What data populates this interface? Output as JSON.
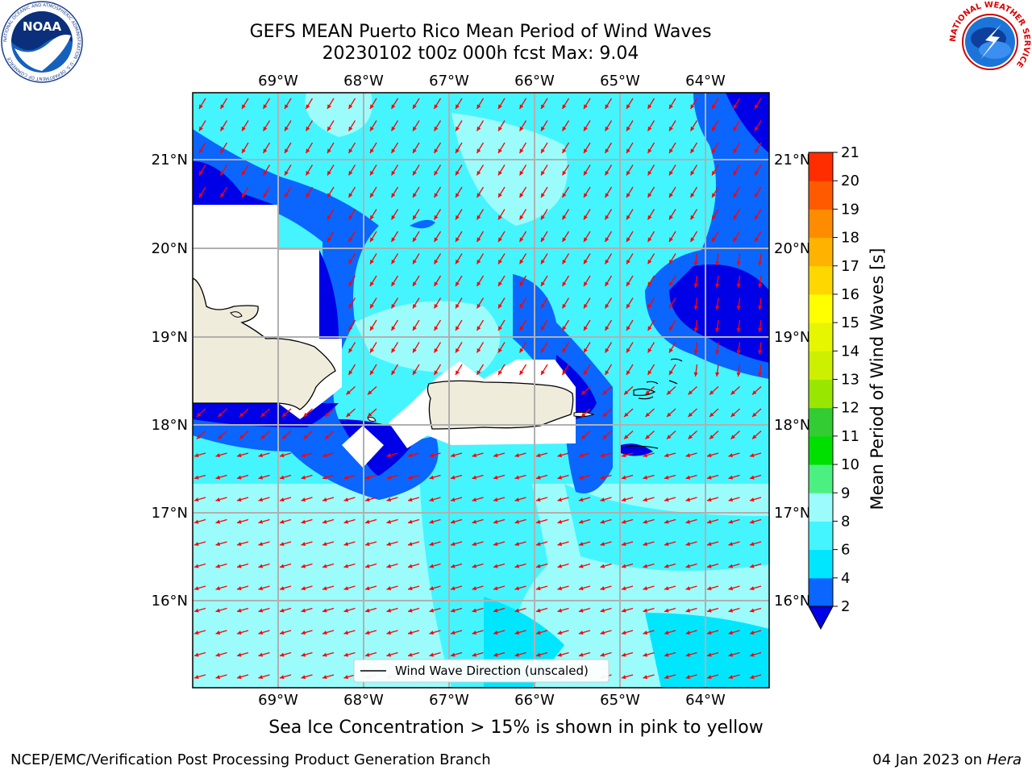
{
  "title": {
    "line1": "GEFS MEAN Puerto Rico Mean Period of Wind Waves",
    "line2": "20230102 t00z 000h fcst   Max: 9.04"
  },
  "map": {
    "lon_labels": [
      "69°W",
      "68°W",
      "67°W",
      "66°W",
      "65°W",
      "64°W"
    ],
    "lat_labels": [
      "21°N",
      "20°N",
      "19°N",
      "18°N",
      "17°N",
      "16°N"
    ],
    "legend_label": "Wind Wave Direction (unscaled)",
    "arrow_color": "#ff0000"
  },
  "colorbar": {
    "label": "Mean Period of Wind Waves [s]",
    "ticks": [
      "2",
      "4",
      "6",
      "8",
      "9",
      "10",
      "11",
      "12",
      "13",
      "14",
      "15",
      "16",
      "17",
      "18",
      "19",
      "20",
      "21"
    ],
    "colors": [
      "#0a66ff",
      "#00e6ff",
      "#44f5ff",
      "#9cfcfc",
      "#4cf080",
      "#00e000",
      "#33cc33",
      "#99e600",
      "#ccf000",
      "#e6f500",
      "#ffff00",
      "#ffd700",
      "#ffb300",
      "#ff8c00",
      "#ff5a00",
      "#ff2d00"
    ],
    "under_color": "#0000e6"
  },
  "sea_ice_note": "Sea Ice Concentration > 15% is shown in pink to yellow",
  "footer": {
    "left": "NCEP/EMC/Verification Post Processing Product Generation Branch",
    "date": "04 Jan 2023 on ",
    "host": "Hera"
  },
  "logos": {
    "noaa_text": "NOAA",
    "noaa_ring_text": "NATIONAL OCEANIC AND ATMOSPHERIC ADMINISTRATION · U.S. DEPARTMENT OF COMMERCE",
    "nws_ring_text": "NATIONAL WEATHER SERVICE"
  }
}
